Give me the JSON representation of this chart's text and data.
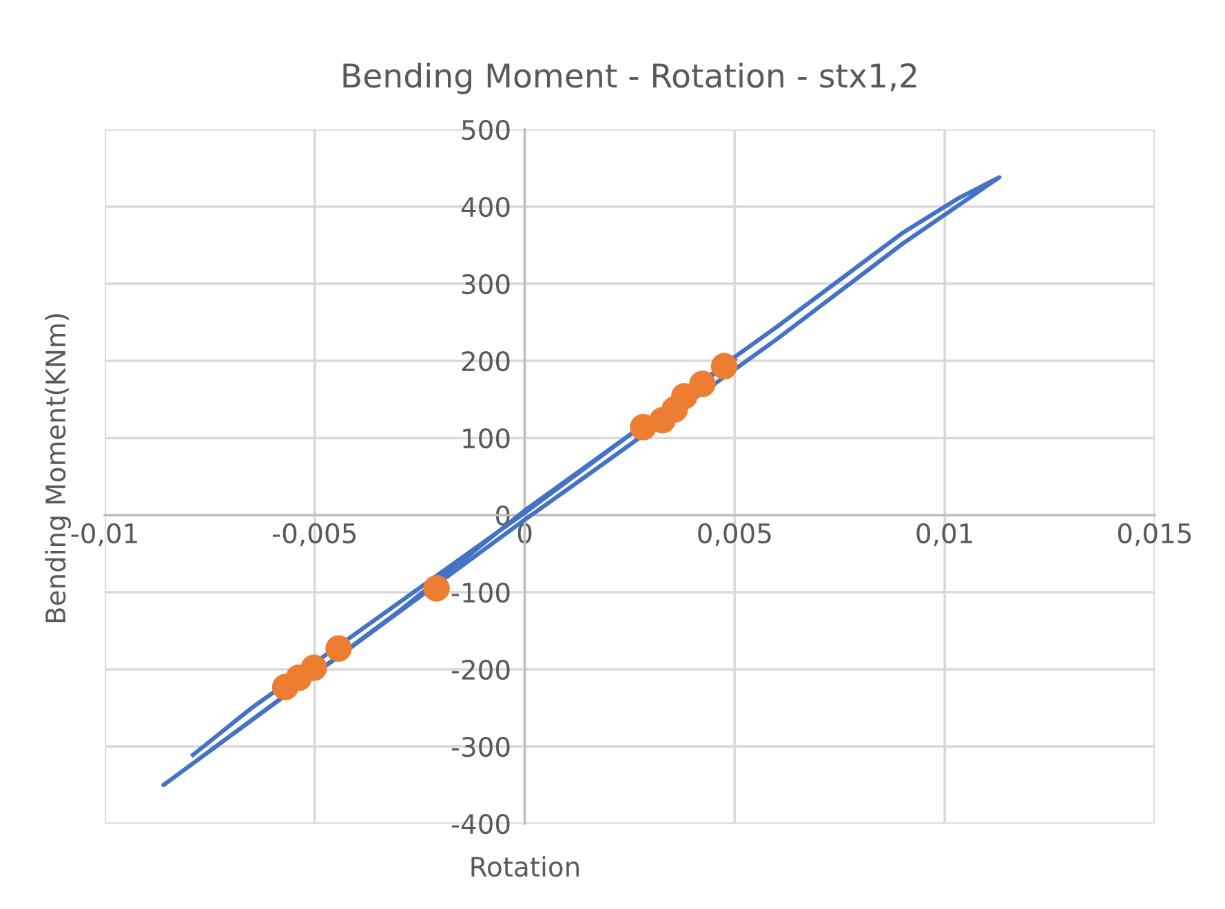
{
  "chart_data": {
    "type": "line",
    "title": "Bending Moment - Rotation - stx1,2",
    "xlabel": "Rotation",
    "ylabel": "Bending Moment(KNm)",
    "xlim": [
      -0.01,
      0.015
    ],
    "xticks": [
      {
        "value": -0.01,
        "label": "-0,01"
      },
      {
        "value": -0.005,
        "label": "-0,005"
      },
      0,
      {
        "value": 0.005,
        "label": "0,005"
      },
      {
        "value": 0.01,
        "label": "0,01"
      },
      {
        "value": 0.015,
        "label": "0,015"
      }
    ],
    "ylim": [
      -400,
      500
    ],
    "yticks": [
      -400,
      -300,
      -200,
      -100,
      0,
      100,
      200,
      300,
      400,
      500
    ],
    "grid": true,
    "series": [
      {
        "type": "line",
        "color": "#4472c4",
        "marker": "none",
        "line_style": "solid",
        "x": [
          -0.0079,
          -0.0065,
          0,
          0.005,
          0.006,
          0.009,
          0.0103,
          0.0113,
          0.009,
          0.006,
          0.0015,
          0,
          -0.0035,
          -0.0086,
          -0.003,
          0,
          0.005
        ],
        "values": [
          -311,
          -250,
          3,
          205,
          244,
          366,
          410,
          438,
          352,
          228,
          52,
          -6,
          -146,
          -350,
          -125,
          6,
          202
        ]
      },
      {
        "type": "scatter",
        "color": "#ed7d31",
        "marker": "circle",
        "x": [
          0.00282,
          0.00328,
          0.00357,
          0.0038,
          0.00423,
          0.00475,
          -0.0021,
          -0.00443,
          -0.00502,
          -0.00538,
          -0.0057
        ],
        "values": [
          114,
          123,
          137,
          154,
          170,
          193,
          -95,
          -173,
          -198,
          -211,
          -223
        ]
      }
    ]
  }
}
